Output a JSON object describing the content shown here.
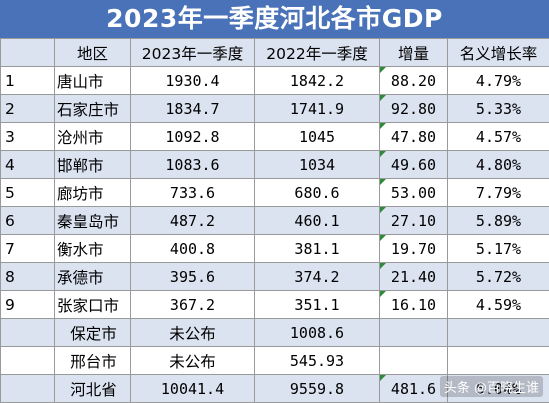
{
  "title": "2023年一季度河北各市GDP",
  "columns": [
    "",
    "地区",
    "2023年一季度",
    "2022年一季度",
    "增量",
    "名义增长率"
  ],
  "rows": [
    {
      "idx": "1",
      "city": "唐山市",
      "gdp2023": "1930.4",
      "gdp2022": "1842.2",
      "increase": "88.20",
      "rate": "4.79%"
    },
    {
      "idx": "2",
      "city": "石家庄市",
      "gdp2023": "1834.7",
      "gdp2022": "1741.9",
      "increase": "92.80",
      "rate": "5.33%"
    },
    {
      "idx": "3",
      "city": "沧州市",
      "gdp2023": "1092.8",
      "gdp2022": "1045",
      "increase": "47.80",
      "rate": "4.57%"
    },
    {
      "idx": "4",
      "city": "邯郸市",
      "gdp2023": "1083.6",
      "gdp2022": "1034",
      "increase": "49.60",
      "rate": "4.80%"
    },
    {
      "idx": "5",
      "city": "廊坊市",
      "gdp2023": "733.6",
      "gdp2022": "680.6",
      "increase": "53.00",
      "rate": "7.79%"
    },
    {
      "idx": "6",
      "city": "秦皇岛市",
      "gdp2023": "487.2",
      "gdp2022": "460.1",
      "increase": "27.10",
      "rate": "5.89%"
    },
    {
      "idx": "7",
      "city": "衡水市",
      "gdp2023": "400.8",
      "gdp2022": "381.1",
      "increase": "19.70",
      "rate": "5.17%"
    },
    {
      "idx": "8",
      "city": "承德市",
      "gdp2023": "395.6",
      "gdp2022": "374.2",
      "increase": "21.40",
      "rate": "5.72%"
    },
    {
      "idx": "9",
      "city": "张家口市",
      "gdp2023": "367.2",
      "gdp2022": "351.1",
      "increase": "16.10",
      "rate": "4.59%"
    },
    {
      "idx": "",
      "city": "保定市",
      "gdp2023": "未公布",
      "gdp2022": "1008.6",
      "increase": "",
      "rate": ""
    },
    {
      "idx": "",
      "city": "邢台市",
      "gdp2023": "未公布",
      "gdp2022": "545.93",
      "increase": "",
      "rate": ""
    },
    {
      "idx": "",
      "city": "河北省",
      "gdp2023": "10041.4",
      "gdp2022": "9559.8",
      "increase": "481.6",
      "rate": "5.04%"
    }
  ],
  "watermark": "头条 @百晓生谁"
}
